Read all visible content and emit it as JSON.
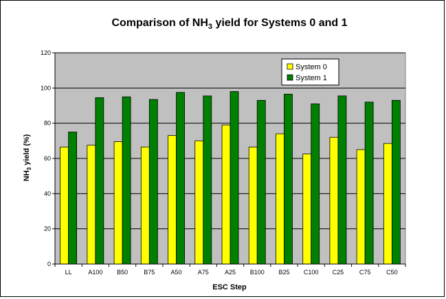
{
  "chart_data": {
    "type": "bar",
    "title": "Comparison of NH",
    "title_sub": "3",
    "title_rest": " yield for Systems 0 and 1",
    "xlabel": "ESC Step",
    "ylabel_pre": "NH",
    "ylabel_sub": "3",
    "ylabel_post": " yield (%)",
    "ylim": [
      0,
      120
    ],
    "yticks": [
      "0",
      "20",
      "40",
      "60",
      "80",
      "100",
      "120"
    ],
    "grid": true,
    "legend_position": "top-right",
    "categories": [
      "LL",
      "A100",
      "B50",
      "B75",
      "A50",
      "A75",
      "A25",
      "B100",
      "B25",
      "C100",
      "C25",
      "C75",
      "C50"
    ],
    "series": [
      {
        "name": "System 0",
        "color": "#ffff00",
        "values": [
          66.5,
          67.5,
          69.5,
          66.5,
          73,
          70,
          79,
          66.5,
          74,
          62.5,
          72,
          65,
          68.5
        ]
      },
      {
        "name": "System 1",
        "color": "#008000",
        "values": [
          75,
          94.5,
          95,
          93.5,
          97.5,
          95.5,
          98,
          93,
          96.5,
          91,
          95.5,
          92,
          93
        ]
      }
    ],
    "plot_background": "#c0c0c0"
  }
}
